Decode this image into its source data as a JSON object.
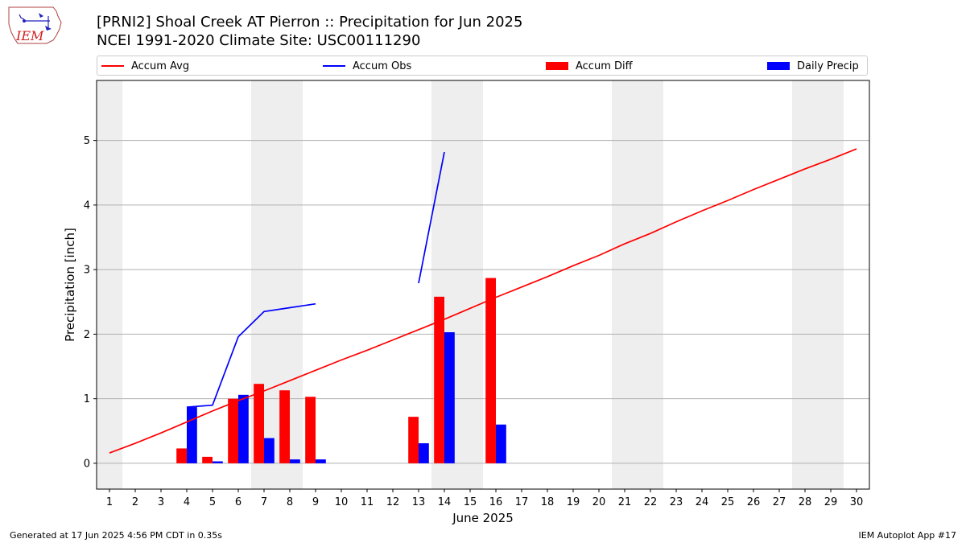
{
  "header": {
    "logo_text": "IEM",
    "title_line1": "[PRNI2] Shoal Creek  AT Pierron :: Precipitation for Jun 2025",
    "title_line2": "NCEI 1991-2020 Climate Site: USC00111290"
  },
  "legend": {
    "placement": "top",
    "items": [
      {
        "label": "Accum Avg",
        "kind": "line",
        "color": "#ff0000"
      },
      {
        "label": "Accum Obs",
        "kind": "line",
        "color": "#0000ff"
      },
      {
        "label": "Accum Diff",
        "kind": "bar",
        "color": "#ff0000"
      },
      {
        "label": "Daily Precip",
        "kind": "bar",
        "color": "#0000ff"
      }
    ]
  },
  "footer": {
    "generated": "Generated at 17 Jun 2025 4:56 PM CDT in 0.35s",
    "app": "IEM Autoplot App #17"
  },
  "chart_data": {
    "type": "bar",
    "xlabel": "June 2025",
    "ylabel": "Precipitation [inch]",
    "xlim": [
      0.5,
      30.5
    ],
    "ylim": [
      -0.4,
      5.93
    ],
    "yticks": [
      0,
      1,
      2,
      3,
      4,
      5
    ],
    "grid": "horizontal",
    "weekend_shading": [
      [
        0.5,
        1.5
      ],
      [
        6.5,
        8.5
      ],
      [
        13.5,
        15.5
      ],
      [
        20.5,
        22.5
      ],
      [
        27.5,
        29.5
      ]
    ],
    "shading_color": "#eeeeee",
    "x": [
      1,
      2,
      3,
      4,
      5,
      6,
      7,
      8,
      9,
      10,
      11,
      12,
      13,
      14,
      15,
      16,
      17,
      18,
      19,
      20,
      21,
      22,
      23,
      24,
      25,
      26,
      27,
      28,
      29,
      30
    ],
    "accum_avg": [
      0.16,
      0.31,
      0.47,
      0.64,
      0.81,
      0.97,
      1.12,
      1.28,
      1.44,
      1.6,
      1.75,
      1.91,
      2.07,
      2.23,
      2.4,
      2.57,
      2.73,
      2.89,
      3.06,
      3.22,
      3.4,
      3.56,
      3.74,
      3.91,
      4.07,
      4.24,
      4.4,
      4.56,
      4.71,
      4.87
    ],
    "accum_obs": [
      null,
      null,
      null,
      0.87,
      0.9,
      1.96,
      2.35,
      2.41,
      2.47,
      null,
      null,
      null,
      2.79,
      4.82,
      null,
      null,
      null,
      null,
      null,
      null,
      null,
      null,
      null,
      null,
      null,
      null,
      null,
      null,
      null,
      null
    ],
    "accum_diff": [
      null,
      null,
      null,
      0.23,
      0.1,
      1.0,
      1.23,
      1.13,
      1.03,
      null,
      null,
      null,
      0.72,
      2.58,
      null,
      2.87,
      null,
      null,
      null,
      null,
      null,
      null,
      null,
      null,
      null,
      null,
      null,
      null,
      null,
      null
    ],
    "daily_precip": [
      null,
      null,
      null,
      0.87,
      0.03,
      1.06,
      0.39,
      0.06,
      0.06,
      null,
      null,
      null,
      0.31,
      2.03,
      null,
      0.6,
      null,
      null,
      null,
      null,
      null,
      null,
      null,
      null,
      null,
      null,
      null,
      null,
      null,
      null
    ],
    "series": [
      {
        "name": "Accum Avg",
        "color": "#ff0000",
        "kind": "line"
      },
      {
        "name": "Accum Obs",
        "color": "#0000ff",
        "kind": "line"
      },
      {
        "name": "Accum Diff",
        "color": "#ff0000",
        "kind": "bar"
      },
      {
        "name": "Daily Precip",
        "color": "#0000ff",
        "kind": "bar"
      }
    ]
  }
}
